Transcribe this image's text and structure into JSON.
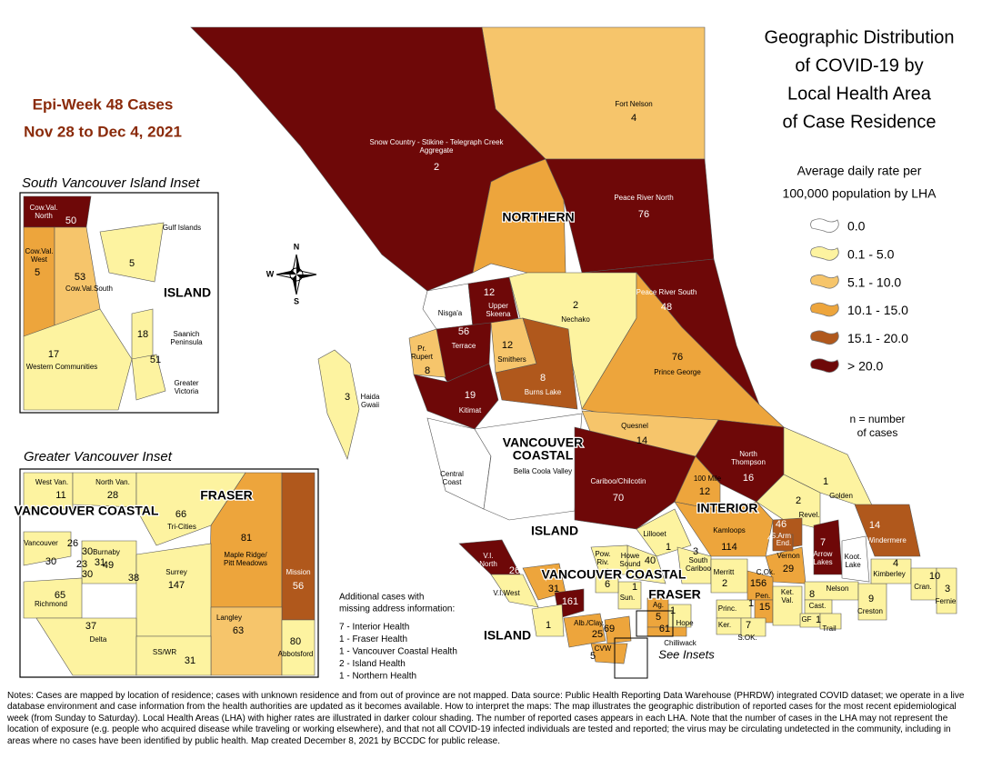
{
  "title": [
    "Geographic Distribution",
    "of COVID-19 by",
    "Local Health Area",
    "of Case Residence"
  ],
  "epi_week": [
    "Epi-Week 48 Cases",
    "Nov 28 to Dec 4, 2021"
  ],
  "legend": {
    "heading": [
      "Average daily rate per",
      "100,000 population by LHA"
    ],
    "items": [
      {
        "label": "0.0",
        "color": "#ffffff"
      },
      {
        "label": "0.1 - 5.0",
        "color": "#fdf3a0"
      },
      {
        "label": "5.1 - 10.0",
        "color": "#f6c56b"
      },
      {
        "label": "10.1 - 15.0",
        "color": "#eda53c"
      },
      {
        "label": "15.1 - 20.0",
        "color": "#b0581c"
      },
      {
        "label": "> 20.0",
        "color": "#6e0808"
      }
    ],
    "note": [
      "n = number",
      "of cases"
    ]
  },
  "compass": [
    "N",
    "W",
    "S"
  ],
  "main_map": {
    "health_authorities": [
      [
        "NORTHERN"
      ],
      [
        "VANCOUVER",
        "COASTAL"
      ],
      [
        "INTERIOR"
      ],
      [
        "ISLAND"
      ],
      [
        "VANCOUVER COASTAL"
      ],
      [
        "FRASER"
      ],
      [
        "ISLAND"
      ]
    ],
    "lhas": [
      {
        "name": "Fort Nelson",
        "cases": 4,
        "color": "#f6c56b"
      },
      {
        "name": [
          "Snow Country - Stikine - Telegraph Creek",
          "Aggregate"
        ],
        "cases": 2,
        "color": "#6e0808"
      },
      {
        "color": "#eda53c"
      },
      {
        "name": "Peace River North",
        "cases": 76,
        "color": "#6e0808"
      },
      {
        "name": "Peace River South",
        "cases": 48,
        "color": "#6e0808"
      },
      {
        "name": "Nisga'a",
        "color": "#ffffff"
      },
      {
        "name": [
          "Upper",
          "Skeena"
        ],
        "cases": 12,
        "color": "#6e0808"
      },
      {
        "name": "Nechako",
        "cases": 2,
        "color": "#fdf3a0"
      },
      {
        "name": "Terrace",
        "cases": 56,
        "color": "#6e0808"
      },
      {
        "name": [
          "Pr.",
          "Rupert"
        ],
        "cases": 8,
        "color": "#f6c56b"
      },
      {
        "name": "Smithers",
        "cases": 12,
        "color": "#f6c56b"
      },
      {
        "name": "Burns Lake",
        "cases": 8,
        "color": "#b0581c"
      },
      {
        "name": "Prince George",
        "cases": 76,
        "color": "#eda53c"
      },
      {
        "name": [
          "Haida",
          "Gwaii"
        ],
        "cases": 3,
        "color": "#fdf3a0"
      },
      {
        "name": "Kitimat",
        "cases": 19,
        "color": "#6e0808"
      },
      {
        "name": "Quesnel",
        "cases": 14,
        "color": "#f6c56b"
      },
      {
        "name": [
          "Central",
          "Coast"
        ],
        "color": "#ffffff"
      },
      {
        "name": "Bella Coola Valley",
        "color": "#ffffff"
      },
      {
        "name": "Cariboo/Chilcotin",
        "cases": 70,
        "color": "#6e0808"
      },
      {
        "name": [
          "North",
          "Thompson"
        ],
        "cases": 16,
        "color": "#6e0808"
      },
      {
        "name": "100 Mile",
        "cases": 12,
        "color": "#eda53c"
      },
      {
        "name": "Golden",
        "cases": 1,
        "color": "#fdf3a0"
      },
      {
        "name": "Revel.",
        "cases": 2,
        "color": "#fdf3a0"
      },
      {
        "name": "Kamloops",
        "cases": 114,
        "color": "#eda53c"
      },
      {
        "name": "S.Arm",
        "cases": 46,
        "color": "#b0581c"
      },
      {
        "name": "Windermere",
        "cases": 14,
        "color": "#b0581c"
      },
      {
        "name": [
          "Arrow",
          "Lakes"
        ],
        "cases": 7,
        "color": "#6e0808"
      },
      {
        "name": [
          "Koot.",
          "Lake"
        ],
        "color": "#ffffff"
      },
      {
        "name": "Lillooet",
        "cases": 1,
        "color": "#fdf3a0"
      },
      {
        "name": [
          "Howe",
          "Sound"
        ],
        "cases": 40,
        "color": "#fdf3a0"
      },
      {
        "name": [
          "Pow.",
          "Riv."
        ],
        "cases": 1,
        "color": "#fdf3a0"
      },
      {
        "name": [
          "South",
          "Cariboo"
        ],
        "cases": 3,
        "color": "#fdf3a0"
      },
      {
        "name": "Merritt",
        "cases": 2,
        "color": "#fdf3a0"
      },
      {
        "name": "Vernon",
        "cases": 29,
        "color": "#eda53c"
      },
      {
        "name": "C.Ok.",
        "cases": 156,
        "color": "#eda53c"
      },
      {
        "name": "Pen.",
        "cases": 15,
        "color": "#eda53c"
      },
      {
        "name": "End.",
        "cases": 4,
        "color": "#b0581c"
      },
      {
        "name": [
          "Ket.",
          "Val."
        ],
        "color": "#fdf3a0"
      },
      {
        "name": "Princ.",
        "cases": 1,
        "color": "#fdf3a0"
      },
      {
        "name": "Ker.",
        "color": "#fdf3a0"
      },
      {
        "name": "S.OK.",
        "cases": 7,
        "color": "#fdf3a0"
      },
      {
        "name": "Nelson",
        "color": "#fdf3a0"
      },
      {
        "name": "Cast.",
        "cases": 8,
        "color": "#fdf3a0"
      },
      {
        "name": "GF",
        "cases": 1,
        "color": "#fdf3a0"
      },
      {
        "name": "Trail",
        "color": "#fdf3a0"
      },
      {
        "name": "Creston",
        "cases": 9,
        "color": "#fdf3a0"
      },
      {
        "name": "Kimberley",
        "cases": 4,
        "color": "#fdf3a0"
      },
      {
        "name": "Cran.",
        "cases": 10,
        "color": "#fdf3a0"
      },
      {
        "name": "Fernie",
        "cases": 3,
        "color": "#fdf3a0"
      },
      {
        "name": "Hope",
        "cases": 1,
        "color": "#fdf3a0"
      },
      {
        "name": "Ag.",
        "cases": 5,
        "color": "#eda53c"
      },
      {
        "name": "Chilliwack",
        "cases": 61,
        "color": "#eda53c"
      },
      {
        "name": [
          "V.I.",
          "North"
        ],
        "cases": 26,
        "color": "#6e0808"
      },
      {
        "name": "V.I.West",
        "color": "#fdf3a0"
      },
      {
        "name": "C.R.",
        "cases": 31,
        "color": "#eda53c"
      },
      {
        "cases": 161,
        "color": "#6e0808"
      },
      {
        "name": "Alb./Clay.",
        "cases": 25,
        "color": "#eda53c"
      },
      {
        "cases": 69,
        "color": "#eda53c"
      },
      {
        "name": "CVW",
        "cases": 5,
        "color": "#eda53c"
      },
      {
        "cases": 1,
        "color": "#fdf3a0"
      },
      {
        "name": "Sun.",
        "cases": 1,
        "color": "#fdf3a0"
      },
      {
        "cases": 6,
        "color": "#fdf3a0"
      }
    ],
    "see_insets": "See Insets"
  },
  "inset_south_vi": {
    "title": "South Vancouver Island Inset",
    "health_authorities": [
      [
        "ISLAND"
      ]
    ],
    "lhas": [
      {
        "name": [
          "Cow.Val.",
          "North"
        ],
        "cases": 50,
        "color": "#6e0808"
      },
      {
        "name": "Gulf Islands",
        "cases": 5,
        "color": "#fdf3a0"
      },
      {
        "name": [
          "Cow.Val.",
          "West"
        ],
        "cases": 5,
        "color": "#eda53c"
      },
      {
        "name": "Cow.Val.South",
        "cases": 53,
        "color": "#f6c56b"
      },
      {
        "name": [
          "Saanich",
          "Peninsula"
        ],
        "cases": 18,
        "color": "#fdf3a0"
      },
      {
        "name": "Western Communities",
        "cases": 17,
        "color": "#fdf3a0"
      },
      {
        "name": [
          "Greater",
          "Victoria"
        ],
        "cases": 51,
        "color": "#fdf3a0"
      }
    ]
  },
  "inset_greater_vancouver": {
    "title": "Greater Vancouver Inset",
    "health_authorities": [
      [
        "VANCOUVER COASTAL"
      ],
      [
        "FRASER"
      ]
    ],
    "lhas": [
      {
        "name": "West Van.",
        "cases": 11,
        "color": "#fdf3a0"
      },
      {
        "name": "North Van.",
        "cases": 28,
        "color": "#fdf3a0"
      },
      {
        "name": "Tri-Cities",
        "cases": 66,
        "color": "#fdf3a0"
      },
      {
        "name": [
          "Maple Ridge/",
          "Pitt Meadows"
        ],
        "cases": 81,
        "color": "#eda53c"
      },
      {
        "name": "Mission",
        "cases": 56,
        "color": "#b0581c"
      },
      {
        "name": "Vancouver",
        "cases": 26,
        "color": "#fdf3a0"
      },
      {
        "cases": 30,
        "color": "#fdf3a0"
      },
      {
        "cases": 30,
        "color": "#fdf3a0"
      },
      {
        "cases": 23,
        "color": "#fdf3a0"
      },
      {
        "cases": 31,
        "color": "#fdf3a0"
      },
      {
        "cases": 30,
        "color": "#fdf3a0"
      },
      {
        "cases": 38,
        "color": "#fdf3a0"
      },
      {
        "name": "Burnaby",
        "cases": 49,
        "color": "#fdf3a0"
      },
      {
        "name": "Richmond",
        "cases": 65,
        "color": "#fdf3a0"
      },
      {
        "name": "Surrey",
        "cases": 147,
        "color": "#fdf3a0"
      },
      {
        "name": "Langley",
        "cases": 63,
        "color": "#f6c56b"
      },
      {
        "name": "Abbotsford",
        "cases": 80,
        "color": "#fdf3a0"
      },
      {
        "name": "Delta",
        "cases": 37,
        "color": "#fdf3a0"
      },
      {
        "name": "SS/WR",
        "cases": 31,
        "color": "#fdf3a0"
      }
    ]
  },
  "additional_cases": {
    "heading": [
      "Additional cases with",
      "missing address information:"
    ],
    "items": [
      "7 - Interior Health",
      "1 - Fraser Health",
      "1 - Vancouver Coastal Health",
      "2 - Island Health",
      "1 - Northern Health"
    ]
  },
  "notes": "Notes: Cases are mapped by location of residence; cases with unknown residence and from out of province are not mapped. Data source: Public Health Reporting Data Warehouse (PHRDW) integrated COVID dataset; we operate in a live database environment and case information from the health authorities are updated as it becomes available. How to interpret the maps: The map illustrates the geographic distribution of reported cases for the most recent epidemiological week (from Sunday to Saturday). Local Health Areas (LHA) with higher rates are illustrated in darker colour shading. The number of reported cases appears in each LHA. Note that the number of cases in the LHA may not represent the location of exposure (e.g. people who acquired disease while traveling or working elsewhere), and that not all COVID-19 infected individuals are tested and reported; the virus may be circulating undetected in the community, including in areas where no cases have been identified by public health. Map created December 8, 2021 by BCCDC for public release."
}
